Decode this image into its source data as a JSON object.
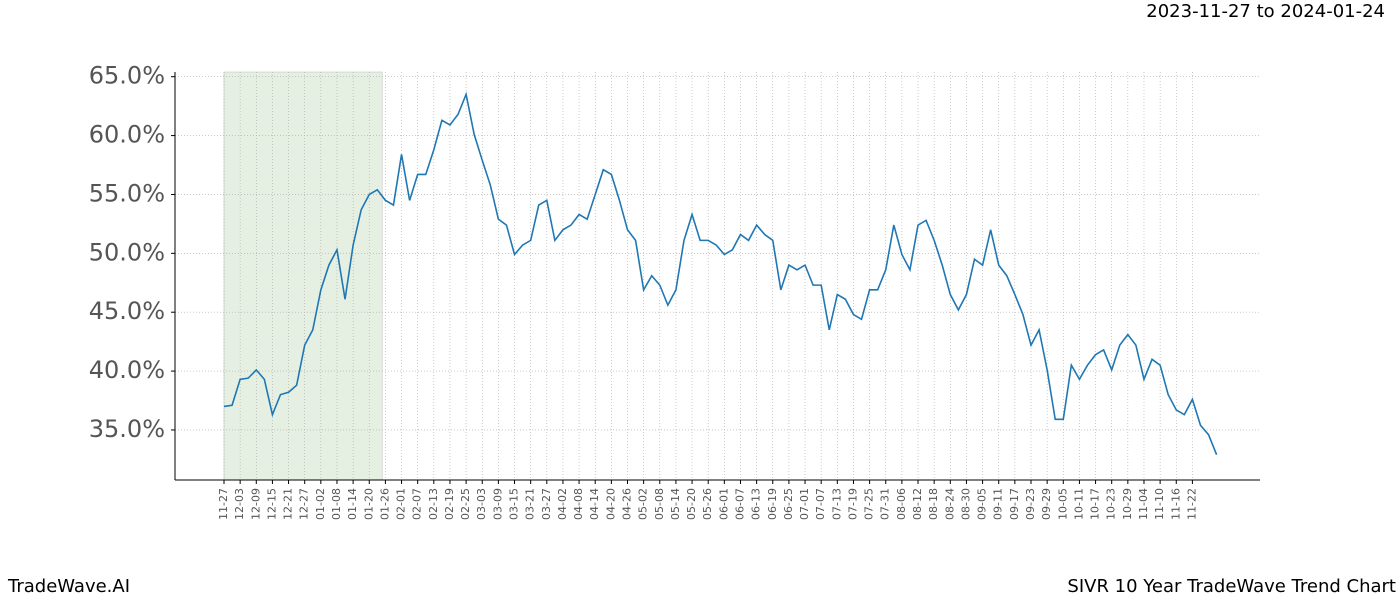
{
  "chart_data": {
    "type": "line",
    "date_range": "2023-11-27 to 2024-01-24",
    "brand": "TradeWave.AI",
    "caption": "SIVR 10 Year TradeWave Trend Chart",
    "categories": [
      "11-27",
      null,
      "12-03",
      null,
      "12-09",
      null,
      "12-15",
      null,
      "12-21",
      null,
      "12-27",
      null,
      "01-02",
      null,
      "01-08",
      null,
      "01-14",
      null,
      "01-20",
      null,
      "01-26",
      null,
      "02-01",
      null,
      "02-07",
      null,
      "02-13",
      null,
      "02-19",
      null,
      "02-25",
      null,
      "03-03",
      null,
      "03-09",
      null,
      "03-15",
      null,
      "03-21",
      null,
      "03-27",
      null,
      "04-02",
      null,
      "04-08",
      null,
      "04-14",
      null,
      "04-20",
      null,
      "04-26",
      null,
      "05-02",
      null,
      "05-08",
      null,
      "05-14",
      null,
      "05-20",
      null,
      "05-26",
      null,
      "06-01",
      null,
      "06-07",
      null,
      "06-13",
      null,
      "06-19",
      null,
      "06-25",
      null,
      "07-01",
      null,
      "07-07",
      null,
      "07-13",
      null,
      "07-19",
      null,
      "07-25",
      null,
      "07-31",
      null,
      "08-06",
      null,
      "08-12",
      null,
      "08-18",
      null,
      "08-24",
      null,
      "08-30",
      null,
      "09-05",
      null,
      "09-11",
      null,
      "09-17",
      null,
      "09-23",
      null,
      "09-29",
      null,
      "10-05",
      null,
      "10-11",
      null,
      "10-17",
      null,
      "10-23",
      null,
      "10-29",
      null,
      "11-04",
      null,
      "11-10",
      null,
      "11-16",
      null,
      "11-22",
      null,
      null,
      null
    ],
    "series": [
      {
        "color": "#1f77b4",
        "values": [
          37.0,
          37.1,
          39.3,
          39.4,
          40.1,
          39.3,
          36.3,
          38.0,
          38.2,
          38.8,
          42.2,
          43.5,
          46.9,
          49.0,
          50.3,
          46.1,
          50.7,
          53.7,
          55.0,
          55.4,
          54.5,
          54.1,
          58.4,
          54.5,
          56.7,
          56.7,
          58.8,
          61.3,
          60.9,
          61.8,
          63.5,
          60.1,
          57.9,
          55.8,
          52.9,
          52.4,
          49.9,
          50.7,
          51.1,
          54.1,
          54.5,
          51.1,
          52.0,
          52.4,
          53.3,
          52.9,
          55.0,
          57.1,
          56.7,
          54.5,
          52.0,
          51.1,
          46.9,
          48.1,
          47.3,
          45.6,
          46.9,
          51.1,
          53.3,
          51.1,
          51.1,
          50.7,
          49.9,
          50.3,
          51.6,
          51.1,
          52.4,
          51.6,
          51.1,
          46.9,
          49.0,
          48.6,
          49.0,
          47.3,
          47.3,
          43.5,
          46.5,
          46.1,
          44.8,
          44.4,
          46.9,
          46.9,
          48.6,
          52.4,
          49.9,
          48.6,
          52.4,
          52.8,
          51.1,
          49.0,
          46.5,
          45.2,
          46.5,
          49.5,
          49.0,
          52.0,
          49.0,
          48.1,
          46.5,
          44.8,
          42.2,
          43.5,
          40.1,
          35.9,
          35.9,
          40.5,
          39.3,
          40.5,
          41.4,
          41.8,
          40.1,
          42.2,
          43.1,
          42.2,
          39.3,
          41.0,
          40.5,
          38.0,
          36.7,
          36.3,
          37.6,
          35.4,
          34.6,
          32.9
        ]
      }
    ],
    "ylim": [
      30.75,
      65.4
    ],
    "yticks": [
      {
        "value": 35,
        "label": "35.0%"
      },
      {
        "value": 40,
        "label": "40.0%"
      },
      {
        "value": 45,
        "label": "45.0%"
      },
      {
        "value": 50,
        "label": "50.0%"
      },
      {
        "value": 55,
        "label": "55.0%"
      },
      {
        "value": 60,
        "label": "60.0%"
      },
      {
        "value": 65,
        "label": "65.0%"
      }
    ],
    "grid": true,
    "shaded_color": "#e5f0e3"
  }
}
